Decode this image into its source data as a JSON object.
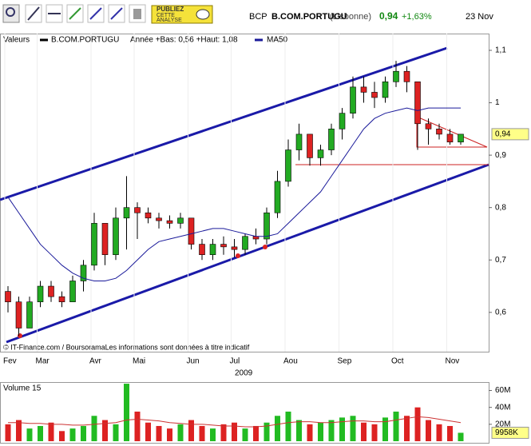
{
  "toolbar": {
    "publish": [
      "PUBLIEZ",
      "CETTE",
      "ANALYSE"
    ]
  },
  "header": {
    "code": "BCP",
    "name": "B.COM.PORTUGU",
    "market": "(Lisbonne)",
    "price": "0,94",
    "change": "+1,63%",
    "date": "23 Nov"
  },
  "legend": {
    "label": "Valeurs",
    "range": "Année +Bas: 0,56 +Haut: 1,08"
  },
  "source": "© IT-Finance.com / BoursoramaLes informations sont données à titre indicatif",
  "chart_data": [
    {
      "type": "candlestick",
      "categories": [
        "Fev",
        null,
        null,
        "Mar",
        null,
        null,
        null,
        null,
        "Avr",
        null,
        null,
        null,
        "Mai",
        null,
        null,
        null,
        null,
        "Jun",
        null,
        null,
        null,
        "Jul",
        null,
        null,
        null,
        null,
        "Aou",
        null,
        null,
        null,
        null,
        "Sep",
        null,
        null,
        null,
        null,
        "Oct",
        null,
        null,
        null,
        null,
        "Nov",
        null
      ],
      "x_label": "2009",
      "series": [
        {
          "name": "B.COM.PORTUGU",
          "color": "#000000",
          "up_color": "#22aa22",
          "down_color": "#dd2222",
          "open": [
            0.64,
            0.62,
            0.57,
            0.62,
            0.65,
            0.63,
            0.62,
            0.66,
            0.69,
            0.77,
            0.71,
            0.78,
            0.8,
            0.79,
            0.78,
            0.775,
            0.77,
            0.78,
            0.73,
            0.71,
            0.73,
            0.725,
            0.72,
            0.745,
            0.74,
            0.79,
            0.85,
            0.91,
            0.94,
            0.895,
            0.91,
            0.95,
            0.98,
            1.03,
            1.02,
            1.01,
            1.04,
            1.06,
            1.04,
            0.96,
            0.95,
            0.94,
            0.925
          ],
          "high": [
            0.65,
            0.63,
            0.63,
            0.66,
            0.66,
            0.64,
            0.67,
            0.7,
            0.79,
            0.77,
            0.8,
            0.86,
            0.81,
            0.8,
            0.79,
            0.785,
            0.79,
            0.78,
            0.74,
            0.74,
            0.745,
            0.74,
            0.75,
            0.76,
            0.8,
            0.87,
            0.93,
            0.96,
            0.94,
            0.92,
            0.96,
            0.99,
            1.05,
            1.05,
            1.04,
            1.05,
            1.08,
            1.07,
            1.04,
            0.97,
            0.96,
            0.95,
            0.94
          ],
          "low": [
            0.6,
            0.555,
            0.57,
            0.61,
            0.62,
            0.61,
            0.62,
            0.64,
            0.68,
            0.69,
            0.7,
            0.72,
            0.74,
            0.77,
            0.76,
            0.76,
            0.76,
            0.72,
            0.7,
            0.7,
            0.71,
            0.705,
            0.71,
            0.73,
            0.73,
            0.78,
            0.84,
            0.89,
            0.88,
            0.88,
            0.9,
            0.93,
            0.97,
            1.0,
            0.99,
            1.0,
            1.03,
            1.02,
            0.91,
            0.92,
            0.93,
            0.92,
            0.92
          ],
          "close": [
            0.62,
            0.57,
            0.62,
            0.65,
            0.63,
            0.62,
            0.66,
            0.69,
            0.77,
            0.71,
            0.78,
            0.8,
            0.79,
            0.78,
            0.775,
            0.77,
            0.78,
            0.73,
            0.71,
            0.73,
            0.725,
            0.72,
            0.745,
            0.74,
            0.79,
            0.85,
            0.91,
            0.94,
            0.895,
            0.91,
            0.95,
            0.98,
            1.03,
            1.02,
            1.01,
            1.04,
            1.06,
            1.04,
            0.96,
            0.95,
            0.94,
            0.925,
            0.94
          ]
        },
        {
          "name": "MA50",
          "color": "#1a1a9a",
          "values": [
            0.82,
            0.79,
            0.76,
            0.73,
            0.71,
            0.69,
            0.675,
            0.665,
            0.66,
            0.66,
            0.665,
            0.68,
            0.7,
            0.72,
            0.735,
            0.74,
            0.745,
            0.75,
            0.755,
            0.76,
            0.76,
            0.755,
            0.75,
            0.745,
            0.745,
            0.75,
            0.77,
            0.79,
            0.81,
            0.83,
            0.86,
            0.89,
            0.92,
            0.95,
            0.97,
            0.98,
            0.985,
            0.99,
            0.985,
            0.99,
            0.99,
            0.99,
            0.99
          ]
        }
      ],
      "ylim": [
        0.525,
        1.132
      ],
      "yticks": [
        {
          "value": 0.6,
          "label": "0,6"
        },
        {
          "value": 0.7,
          "label": "0,7"
        },
        {
          "value": 0.8,
          "label": "0,8"
        },
        {
          "value": 0.9,
          "label": "0,9"
        },
        1,
        {
          "value": 1.1,
          "label": "1,1"
        }
      ],
      "current": {
        "value": 0.94,
        "label": "0,94"
      },
      "grid": false
    },
    {
      "type": "volume",
      "title": "Volume 15",
      "series": [
        {
          "name": "Volume",
          "up_color": "#22bb22",
          "down_color": "#dd2222",
          "values": [
            20000000,
            25000000,
            15000000,
            18000000,
            22000000,
            12000000,
            15000000,
            18000000,
            30000000,
            25000000,
            20000000,
            68000000,
            35000000,
            22000000,
            18000000,
            15000000,
            20000000,
            25000000,
            18000000,
            15000000,
            20000000,
            22000000,
            15000000,
            18000000,
            22000000,
            30000000,
            35000000,
            25000000,
            20000000,
            22000000,
            25000000,
            28000000,
            30000000,
            22000000,
            20000000,
            28000000,
            35000000,
            30000000,
            40000000,
            25000000,
            20000000,
            18000000,
            9958000
          ]
        },
        {
          "name": "MA",
          "color": "#cc3333",
          "values": [
            22000000,
            22000000,
            21000000,
            21000000,
            20000000,
            20000000,
            19000000,
            19000000,
            20000000,
            21000000,
            22000000,
            25000000,
            26000000,
            25000000,
            24000000,
            22000000,
            21000000,
            20000000,
            20000000,
            19000000,
            18000000,
            18000000,
            17000000,
            17000000,
            18000000,
            20000000,
            22000000,
            23000000,
            23000000,
            22000000,
            22000000,
            23000000,
            24000000,
            24000000,
            23000000,
            23000000,
            25000000,
            27000000,
            29000000,
            28000000,
            26000000,
            24000000,
            22000000
          ]
        }
      ],
      "ylim": [
        0,
        69000000
      ],
      "yticks": [
        {
          "value": 20000000,
          "label": "20M"
        },
        {
          "value": 40000000,
          "label": "40M"
        },
        {
          "value": 60000000,
          "label": "60M"
        }
      ],
      "current": {
        "value": 9958000,
        "label": "9958K"
      }
    }
  ]
}
